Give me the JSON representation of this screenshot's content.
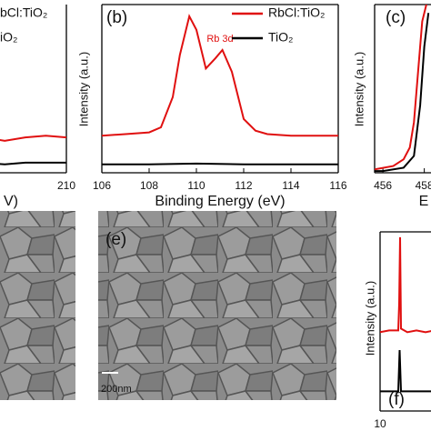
{
  "chart_data": [
    {
      "type": "line",
      "x_label": "V)",
      "xlim": [
        205,
        210
      ],
      "xticks": [
        210
      ],
      "ylim": [
        0,
        100
      ],
      "series": [
        {
          "name": "bCl:TiO₂",
          "color": "#e01010",
          "x": [
            205,
            206,
            207,
            208,
            209,
            210
          ],
          "values": [
            20,
            21,
            19,
            21,
            22,
            21
          ]
        },
        {
          "name": "iO₂",
          "color": "#000000",
          "x": [
            205,
            206,
            207,
            208,
            209,
            210
          ],
          "values": [
            6,
            6,
            5,
            6,
            6,
            6
          ]
        }
      ]
    },
    {
      "type": "line",
      "panel_label": "(b)",
      "x_label": "Binding Energy (eV)",
      "y_label": "Intensity (a.u.)",
      "annotation": "Rb 3d",
      "xlim": [
        106,
        116
      ],
      "xticks": [
        106,
        108,
        110,
        112,
        114,
        116
      ],
      "ylim": [
        0,
        100
      ],
      "series": [
        {
          "name": "RbCl:TiO₂",
          "color": "#e01010",
          "x": [
            106,
            107,
            108,
            108.5,
            109,
            109.3,
            109.7,
            110,
            110.4,
            110.8,
            111.1,
            111.5,
            112,
            112.5,
            113,
            114,
            115,
            116
          ],
          "values": [
            22,
            23,
            24,
            27,
            45,
            70,
            93,
            85,
            62,
            68,
            73,
            60,
            32,
            25,
            23,
            22,
            22,
            22
          ]
        },
        {
          "name": "TiO₂",
          "color": "#000000",
          "x": [
            106,
            108,
            110,
            112,
            114,
            116
          ],
          "values": [
            5,
            5,
            5.5,
            5,
            5,
            5
          ]
        }
      ]
    },
    {
      "type": "line",
      "panel_label": "(c)",
      "x_label": "E",
      "y_label": "Intensity (a.u.)",
      "xlim": [
        455.6,
        458.5
      ],
      "xticks": [
        456,
        458
      ],
      "ylim": [
        0,
        100
      ],
      "series": [
        {
          "name": "RbCl:TiO₂",
          "color": "#e01010",
          "x": [
            455.6,
            456.5,
            457,
            457.3,
            457.5,
            457.7,
            457.9,
            458.1
          ],
          "values": [
            2,
            4,
            8,
            15,
            30,
            60,
            90,
            100
          ]
        },
        {
          "name": "TiO₂",
          "color": "#000000",
          "x": [
            455.6,
            456,
            457,
            457.5,
            457.8,
            458,
            458.2
          ],
          "values": [
            1,
            1,
            3,
            10,
            40,
            75,
            95
          ]
        }
      ]
    },
    {
      "type": "line",
      "panel_label": "(f)",
      "y_label": "Intensity (a.u.)",
      "xlim": [
        10,
        16
      ],
      "xticks": [
        10
      ],
      "ylim": [
        0,
        100
      ],
      "series": [
        {
          "name": "RbCl:TiO₂",
          "color": "#e01010",
          "x": [
            10,
            11,
            12,
            12.1,
            12.2,
            12.3,
            13,
            14,
            15,
            16
          ],
          "values": [
            44,
            45,
            45,
            60,
            97,
            46,
            44,
            45,
            44,
            45
          ]
        },
        {
          "name": "TiO₂",
          "color": "#000000",
          "x": [
            10,
            12,
            12.15,
            12.3,
            16
          ],
          "values": [
            11,
            11,
            34,
            11,
            11
          ]
        }
      ]
    }
  ],
  "images": {
    "e_label": "(e)",
    "e_scale": "200nm"
  }
}
